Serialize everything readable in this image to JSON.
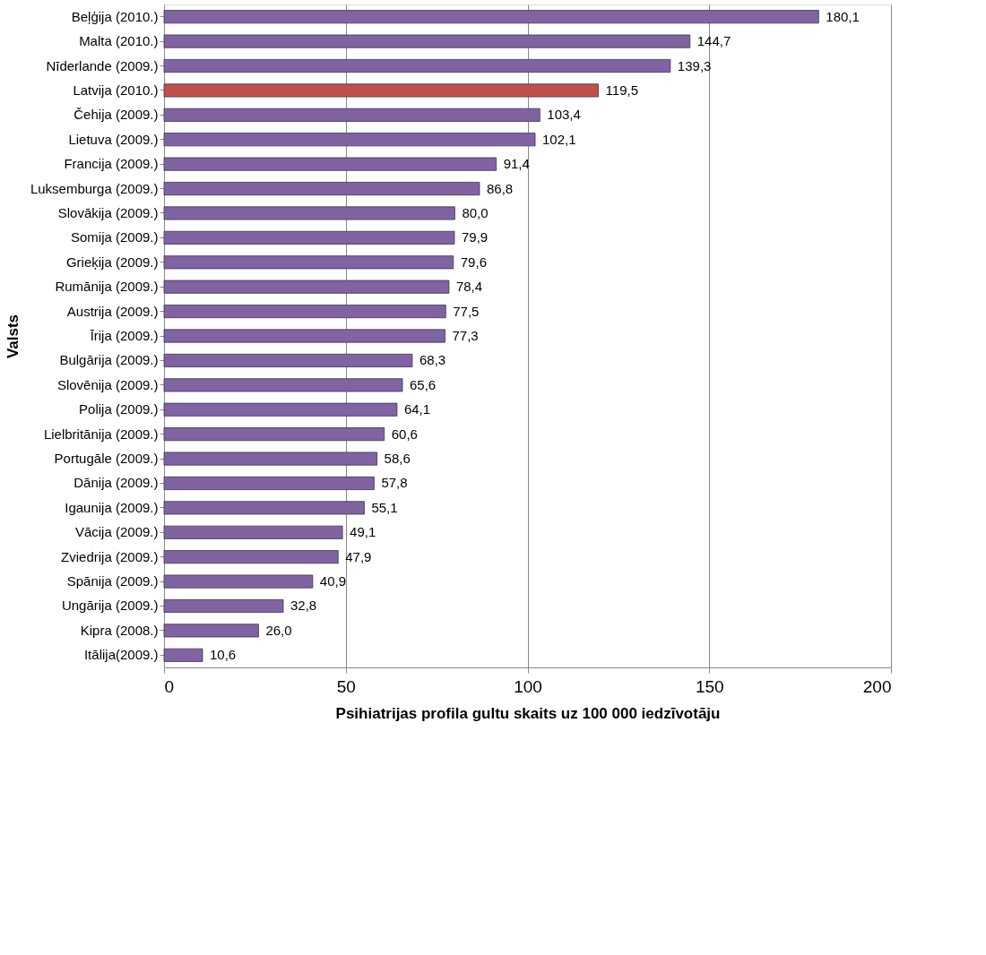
{
  "chart_data": {
    "type": "bar",
    "orientation": "horizontal",
    "xlabel": "Psihiatrijas profila gultu skaits uz 100 000 iedzīvotāju",
    "ylabel": "Valsts",
    "categories": [
      "Beļģija (2010.)",
      "Malta (2010.)",
      "Nīderlande (2009.)",
      "Latvija (2010.)",
      "Čehija (2009.)",
      "Lietuva (2009.)",
      "Francija (2009.)",
      "Luksemburga (2009.)",
      "Slovākija (2009.)",
      "Somija (2009.)",
      "Grieķija (2009.)",
      "Rumānija (2009.)",
      "Austrija (2009.)",
      "Īrija (2009.)",
      "Bulgārija (2009.)",
      "Slovēnija (2009.)",
      "Polija (2009.)",
      "Lielbritānija (2009.)",
      "Portugāle (2009.)",
      "Dānija (2009.)",
      "Igaunija (2009.)",
      "Vācija (2009.)",
      "Zviedrija (2009.)",
      "Spānija (2009.)",
      "Ungārija (2009.)",
      "Kipra (2008.)",
      "Itālija(2009.)"
    ],
    "values": [
      180.1,
      144.7,
      139.3,
      119.5,
      103.4,
      102.1,
      91.4,
      86.8,
      80.0,
      79.9,
      79.6,
      78.4,
      77.5,
      77.3,
      68.3,
      65.6,
      64.1,
      60.6,
      58.6,
      57.8,
      55.1,
      49.1,
      47.9,
      40.9,
      32.8,
      26.0,
      10.6
    ],
    "value_labels": [
      "180,1",
      "144,7",
      "139,3",
      "119,5",
      "103,4",
      "102,1",
      "91,4",
      "86,8",
      "80,0",
      "79,9",
      "79,6",
      "78,4",
      "77,5",
      "77,3",
      "68,3",
      "65,6",
      "64,1",
      "60,6",
      "58,6",
      "57,8",
      "55,1",
      "49,1",
      "47,9",
      "40,9",
      "32,8",
      "26,0",
      "10,6"
    ],
    "colors": [
      "#8064a2",
      "#8064a2",
      "#8064a2",
      "#c0504d",
      "#8064a2",
      "#8064a2",
      "#8064a2",
      "#8064a2",
      "#8064a2",
      "#8064a2",
      "#8064a2",
      "#8064a2",
      "#8064a2",
      "#8064a2",
      "#8064a2",
      "#8064a2",
      "#8064a2",
      "#8064a2",
      "#8064a2",
      "#8064a2",
      "#8064a2",
      "#8064a2",
      "#8064a2",
      "#8064a2",
      "#8064a2",
      "#8064a2",
      "#8064a2"
    ],
    "xlim": [
      0,
      200
    ],
    "xticks": [
      0,
      50,
      100,
      150,
      200
    ],
    "grid": "x"
  }
}
